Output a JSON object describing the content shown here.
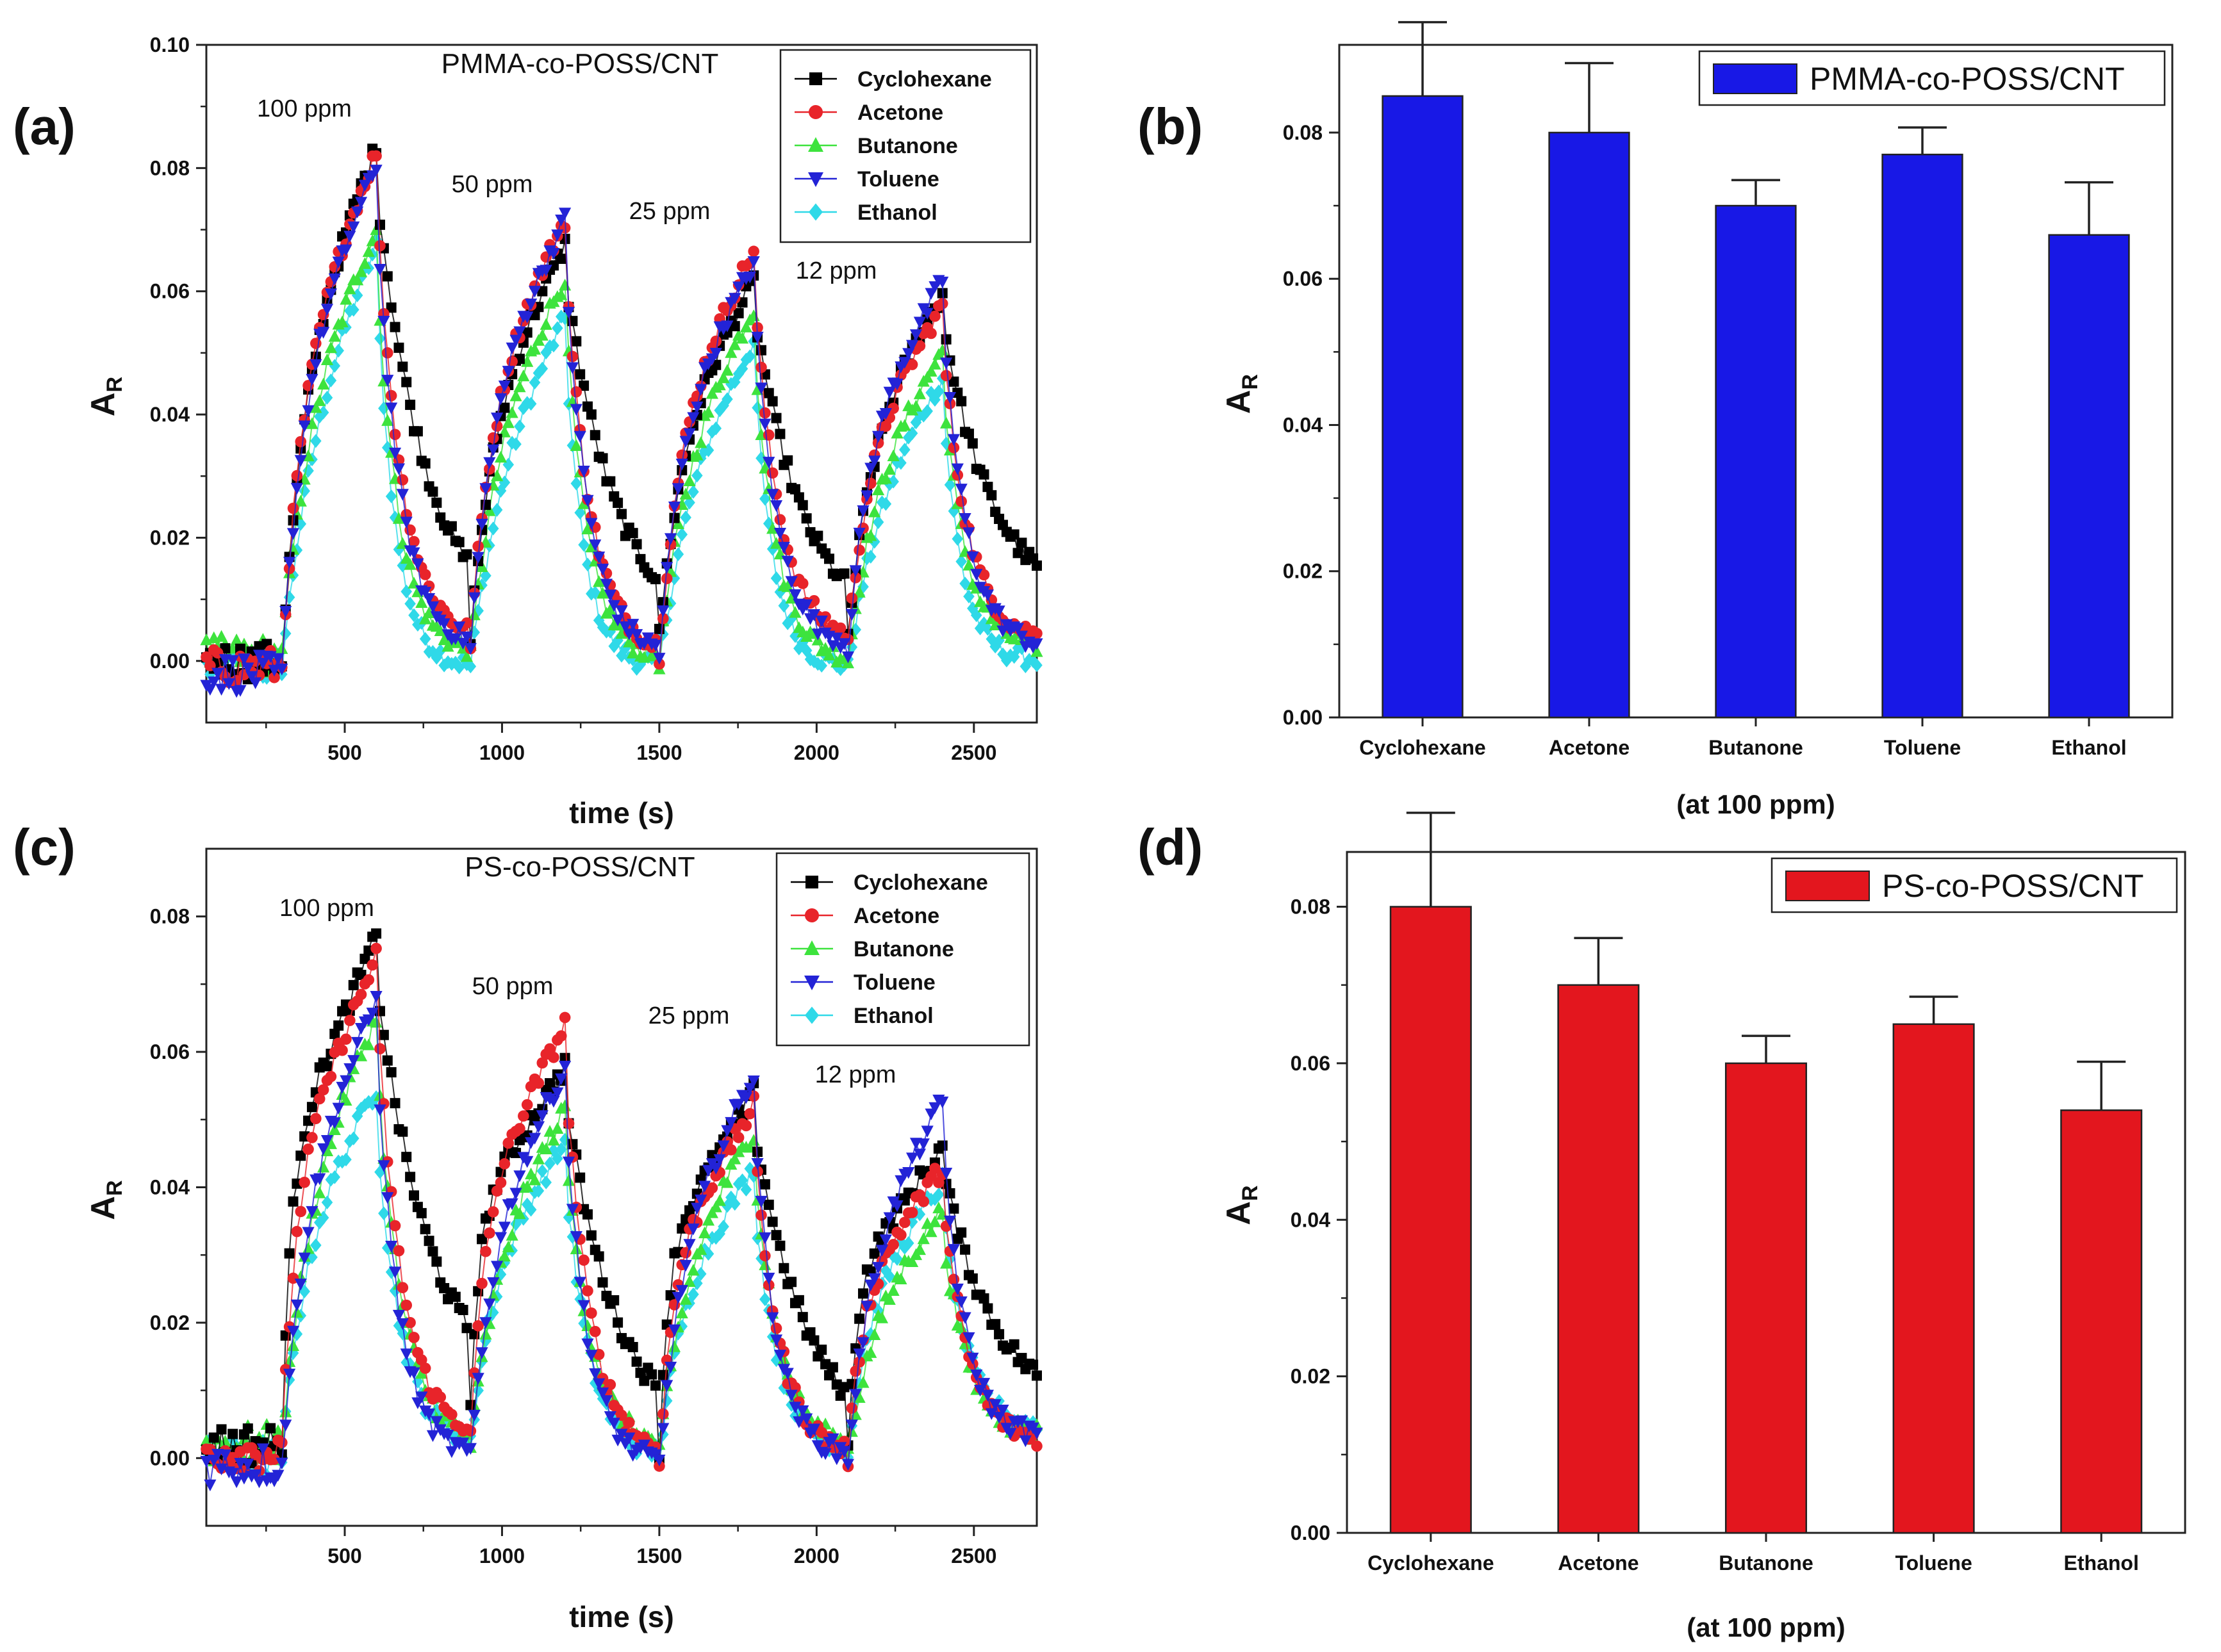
{
  "figure": {
    "panel_labels": [
      "(a)",
      "(b)",
      "(c)",
      "(d)"
    ],
    "series_colors": {
      "Cyclohexane": "#000000",
      "Acetone": "#e8242a",
      "Butanone": "#3de33d",
      "Toluene": "#2323d6",
      "Ethanol": "#2fd9e8"
    },
    "series_markers": {
      "Cyclohexane": "square",
      "Acetone": "circle",
      "Butanone": "triangle-up",
      "Toluene": "triangle-down",
      "Ethanol": "diamond"
    },
    "bar_colors": {
      "b": "#1818e6",
      "d": "#e3161e"
    }
  },
  "chart_data": [
    {
      "id": "a",
      "type": "scatter",
      "title": "PMMA-co-POSS/CNT",
      "xlabel": "time (s)",
      "ylabel": "A_R",
      "ylabel_main": "A",
      "ylabel_sub": "R",
      "xlim": [
        60,
        2700
      ],
      "ylim": [
        -0.01,
        0.1
      ],
      "xticks": [
        500,
        1000,
        1500,
        2000,
        2500
      ],
      "yticks": [
        0.0,
        0.02,
        0.04,
        0.06,
        0.08,
        0.1
      ],
      "ytick_labels": [
        "0.00",
        "0.02",
        "0.04",
        "0.06",
        "0.08",
        "0.10"
      ],
      "exposure_cycles": [
        {
          "label": "100 ppm",
          "on": 300,
          "off": 600
        },
        {
          "label": "50 ppm",
          "on": 900,
          "off": 1200
        },
        {
          "label": "25 ppm",
          "on": 1500,
          "off": 1800
        },
        {
          "label": "12 ppm",
          "on": 2100,
          "off": 2400
        }
      ],
      "series": [
        {
          "name": "Cyclohexane",
          "peaks": [
            0.084,
            0.068,
            0.062,
            0.06
          ],
          "recovery_end": [
            0.004,
            0.004,
            0.004,
            0.008
          ],
          "tau_on": 60,
          "tau_off": 160,
          "baseline": 0.0
        },
        {
          "name": "Acetone",
          "peaks": [
            0.083,
            0.072,
            0.067,
            0.058
          ],
          "recovery_end": [
            0.003,
            0.001,
            0.003,
            0.003
          ],
          "tau_on": 55,
          "tau_off": 80,
          "baseline": -0.001
        },
        {
          "name": "Butanone",
          "peaks": [
            0.071,
            0.063,
            0.058,
            0.051
          ],
          "recovery_end": [
            0.001,
            0.0,
            0.0,
            0.002
          ],
          "tau_on": 70,
          "tau_off": 70,
          "baseline": 0.001
        },
        {
          "name": "Toluene",
          "peaks": [
            0.081,
            0.072,
            0.065,
            0.062
          ],
          "recovery_end": [
            0.002,
            0.001,
            0.002,
            0.002
          ],
          "tau_on": 55,
          "tau_off": 75,
          "baseline": -0.002
        },
        {
          "name": "Ethanol",
          "peaks": [
            0.069,
            0.057,
            0.053,
            0.047
          ],
          "recovery_end": [
            -0.001,
            -0.001,
            -0.001,
            0.0
          ],
          "tau_on": 80,
          "tau_off": 60,
          "baseline": -0.001
        }
      ]
    },
    {
      "id": "b",
      "type": "bar",
      "legend": "PMMA-co-POSS/CNT",
      "categories": [
        "Cyclohexane",
        "Acetone",
        "Butanone",
        "Toluene",
        "Ethanol"
      ],
      "values": [
        0.085,
        0.08,
        0.07,
        0.077,
        0.066
      ],
      "errors": [
        0.0101,
        0.0095,
        0.0035,
        0.0037,
        0.0072
      ],
      "xlabel": "(at 100 ppm)",
      "ylabel": "A_R",
      "ylabel_main": "A",
      "ylabel_sub": "R",
      "ylim": [
        0,
        0.092
      ],
      "yticks": [
        0.0,
        0.02,
        0.04,
        0.06,
        0.08
      ],
      "ytick_labels": [
        "0.00",
        "0.02",
        "0.04",
        "0.06",
        "0.08"
      ]
    },
    {
      "id": "c",
      "type": "scatter",
      "title": "PS-co-POSS/CNT",
      "xlabel": "time (s)",
      "ylabel": "A_R",
      "ylabel_main": "A",
      "ylabel_sub": "R",
      "xlim": [
        60,
        2700
      ],
      "ylim": [
        -0.01,
        0.09
      ],
      "xticks": [
        500,
        1000,
        1500,
        2000,
        2500
      ],
      "yticks": [
        0.0,
        0.02,
        0.04,
        0.06,
        0.08
      ],
      "ytick_labels": [
        "0.00",
        "0.02",
        "0.04",
        "0.06",
        "0.08"
      ],
      "exposure_cycles": [
        {
          "label": "100 ppm",
          "on": 300,
          "off": 600
        },
        {
          "label": "50 ppm",
          "on": 900,
          "off": 1200
        },
        {
          "label": "25 ppm",
          "on": 1500,
          "off": 1800
        },
        {
          "label": "12 ppm",
          "on": 2100,
          "off": 2400
        }
      ],
      "series": [
        {
          "name": "Cyclohexane",
          "peaks": [
            0.077,
            0.058,
            0.054,
            0.046
          ],
          "recovery_end": [
            0.008,
            0.001,
            0.001,
            0.006
          ],
          "tau_on": 25,
          "tau_off": 170,
          "baseline": 0.002
        },
        {
          "name": "Acetone",
          "peaks": [
            0.074,
            0.064,
            0.052,
            0.043
          ],
          "recovery_end": [
            0.003,
            0.0,
            0.0,
            0.002
          ],
          "tau_on": 40,
          "tau_off": 80,
          "baseline": 0.001
        },
        {
          "name": "Butanone",
          "peaks": [
            0.066,
            0.052,
            0.049,
            0.037
          ],
          "recovery_end": [
            0.002,
            0.001,
            0.001,
            0.003
          ],
          "tau_on": 70,
          "tau_off": 80,
          "baseline": 0.002
        },
        {
          "name": "Toluene",
          "peaks": [
            0.068,
            0.058,
            0.057,
            0.053
          ],
          "recovery_end": [
            0.0,
            -0.001,
            0.0,
            0.003
          ],
          "tau_on": 60,
          "tau_off": 70,
          "baseline": -0.001
        },
        {
          "name": "Ethanol",
          "peaks": [
            0.055,
            0.047,
            0.043,
            0.041
          ],
          "recovery_end": [
            0.002,
            0.0,
            0.001,
            0.004
          ],
          "tau_on": 60,
          "tau_off": 75,
          "baseline": 0.0
        }
      ]
    },
    {
      "id": "d",
      "type": "bar",
      "legend": "PS-co-POSS/CNT",
      "categories": [
        "Cyclohexane",
        "Acetone",
        "Butanone",
        "Toluene",
        "Ethanol"
      ],
      "values": [
        0.08,
        0.07,
        0.06,
        0.065,
        0.054
      ],
      "errors": [
        0.012,
        0.006,
        0.0035,
        0.0035,
        0.0062
      ],
      "xlabel": "(at 100 ppm)",
      "ylabel": "A_R",
      "ylabel_main": "A",
      "ylabel_sub": "R",
      "ylim": [
        0,
        0.087
      ],
      "yticks": [
        0.0,
        0.02,
        0.04,
        0.06,
        0.08
      ],
      "ytick_labels": [
        "0.00",
        "0.02",
        "0.04",
        "0.06",
        "0.08"
      ]
    }
  ]
}
